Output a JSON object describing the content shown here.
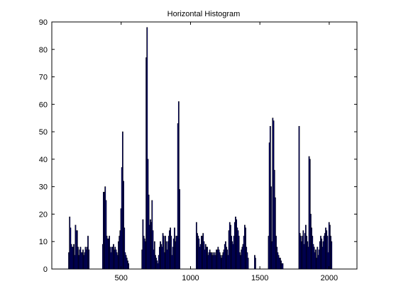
{
  "chart_data": {
    "type": "bar",
    "title": "Horizontal Histogram",
    "xlabel": "",
    "ylabel": "",
    "xlim": [
      0,
      2200
    ],
    "ylim": [
      0,
      90
    ],
    "xticks": [
      500,
      1000,
      1500,
      2000
    ],
    "yticks": [
      0,
      10,
      20,
      30,
      40,
      50,
      60,
      70,
      80,
      90
    ],
    "grid": false,
    "colors": {
      "bar_fill": "#0000a0",
      "bar_edge": "#000000"
    },
    "x": [
      120,
      126,
      132,
      138,
      144,
      150,
      156,
      162,
      168,
      174,
      180,
      186,
      192,
      198,
      204,
      210,
      216,
      222,
      228,
      234,
      240,
      246,
      252,
      258,
      264,
      365,
      370,
      376,
      382,
      388,
      394,
      400,
      406,
      412,
      418,
      424,
      430,
      436,
      442,
      448,
      454,
      460,
      466,
      472,
      478,
      484,
      490,
      496,
      502,
      508,
      514,
      520,
      526,
      532,
      538,
      544,
      550,
      648,
      654,
      660,
      666,
      672,
      678,
      684,
      690,
      696,
      702,
      708,
      714,
      720,
      726,
      732,
      738,
      744,
      750,
      756,
      762,
      768,
      774,
      780,
      786,
      792,
      798,
      804,
      810,
      816,
      822,
      828,
      834,
      840,
      846,
      852,
      858,
      864,
      870,
      876,
      882,
      888,
      894,
      900,
      906,
      912,
      918,
      1040,
      1046,
      1052,
      1058,
      1064,
      1070,
      1076,
      1082,
      1088,
      1094,
      1100,
      1106,
      1112,
      1118,
      1124,
      1130,
      1136,
      1142,
      1148,
      1154,
      1160,
      1166,
      1172,
      1178,
      1184,
      1190,
      1196,
      1202,
      1208,
      1214,
      1220,
      1226,
      1232,
      1238,
      1244,
      1250,
      1256,
      1262,
      1268,
      1274,
      1280,
      1286,
      1292,
      1298,
      1304,
      1310,
      1316,
      1322,
      1328,
      1334,
      1340,
      1346,
      1352,
      1358,
      1364,
      1370,
      1376,
      1382,
      1388,
      1394,
      1400,
      1406,
      1412,
      1460,
      1465,
      1560,
      1566,
      1572,
      1578,
      1584,
      1590,
      1596,
      1602,
      1608,
      1614,
      1620,
      1626,
      1632,
      1638,
      1644,
      1650,
      1656,
      1662,
      1780,
      1786,
      1792,
      1798,
      1804,
      1810,
      1816,
      1822,
      1828,
      1834,
      1840,
      1846,
      1852,
      1858,
      1864,
      1870,
      1876,
      1882,
      1888,
      1894,
      1900,
      1906,
      1912,
      1918,
      1924,
      1930,
      1936,
      1942,
      1948,
      1954,
      1960,
      1966,
      1972,
      1978,
      1984,
      1990,
      1996,
      2002,
      2008,
      2014
    ],
    "values": [
      6,
      19,
      15,
      9,
      8,
      8,
      9,
      5,
      16,
      14,
      14,
      8,
      5,
      7,
      8,
      6,
      6,
      7,
      5,
      6,
      8,
      7,
      8,
      12,
      7,
      9,
      28,
      28,
      30,
      25,
      12,
      11,
      11,
      12,
      8,
      6,
      8,
      8,
      9,
      7,
      8,
      7,
      6,
      5,
      10,
      12,
      14,
      22,
      37,
      50,
      32,
      15,
      6,
      5,
      4,
      3,
      2,
      7,
      18,
      12,
      11,
      10,
      77,
      88,
      40,
      27,
      16,
      18,
      17,
      25,
      14,
      7,
      10,
      5,
      4,
      3,
      2,
      5,
      8,
      10,
      9,
      8,
      13,
      12,
      6,
      12,
      10,
      7,
      10,
      12,
      14,
      15,
      12,
      5,
      8,
      11,
      15,
      10,
      12,
      12,
      53,
      61,
      29,
      17,
      13,
      12,
      11,
      8,
      9,
      12,
      12,
      13,
      10,
      7,
      9,
      8,
      8,
      5,
      6,
      7,
      6,
      6,
      5,
      6,
      5,
      6,
      5,
      7,
      7,
      8,
      7,
      6,
      5,
      4,
      5,
      6,
      7,
      9,
      10,
      8,
      7,
      5,
      14,
      17,
      16,
      12,
      10,
      9,
      12,
      17,
      19,
      18,
      15,
      14,
      12,
      6,
      5,
      7,
      8,
      9,
      12,
      16,
      15,
      8,
      6,
      4,
      5,
      4,
      12,
      46,
      52,
      30,
      10,
      55,
      54,
      36,
      26,
      12,
      8,
      6,
      5,
      4,
      4,
      3,
      2,
      2,
      52,
      13,
      12,
      10,
      12,
      14,
      9,
      13,
      16,
      12,
      10,
      8,
      41,
      40,
      20,
      15,
      12,
      9,
      8,
      6,
      7,
      4,
      8,
      5,
      7,
      10,
      12,
      11,
      8,
      10,
      12,
      13,
      15,
      14,
      12,
      6,
      17,
      16,
      12,
      10
    ]
  }
}
